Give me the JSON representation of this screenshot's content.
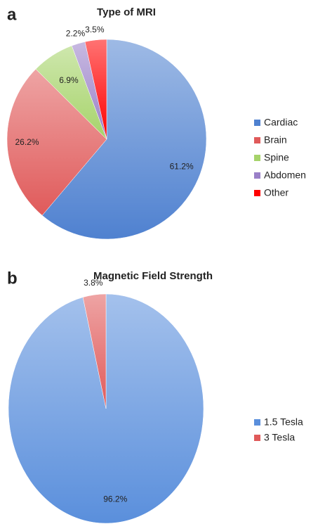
{
  "chart_data": [
    {
      "type": "pie",
      "panel": "a",
      "title": "Type of MRI",
      "categories": [
        "Cardiac",
        "Brain",
        "Spine",
        "Abdomen",
        "Other"
      ],
      "values": [
        61.2,
        26.2,
        6.9,
        2.2,
        3.5
      ],
      "value_labels": [
        "61.2%",
        "26.2%",
        "6.9%",
        "2.2%",
        "3.5%"
      ],
      "colors": [
        "#4f81d0",
        "#e05a5a",
        "#a6d36a",
        "#9a80c8",
        "#ff0000"
      ],
      "legend": "right"
    },
    {
      "type": "pie",
      "panel": "b",
      "title": "Magnetic Field Strength",
      "categories": [
        "1.5 Tesla",
        "3 Tesla"
      ],
      "values": [
        96.2,
        3.8
      ],
      "value_labels": [
        "96.2%",
        "3.8%"
      ],
      "colors": [
        "#5a8fdc",
        "#e05a5a"
      ],
      "legend": "right"
    }
  ]
}
